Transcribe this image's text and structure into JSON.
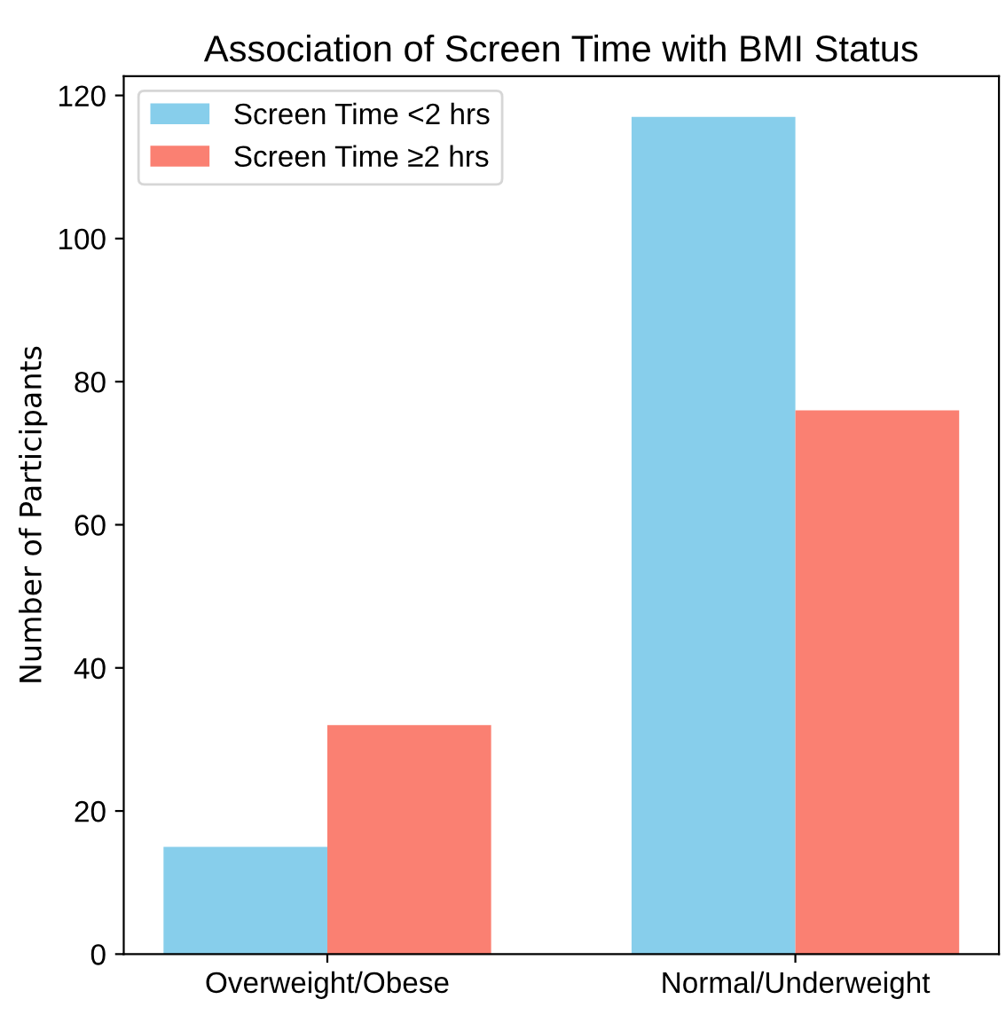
{
  "chart_data": {
    "type": "bar",
    "title": "Association of Screen Time with BMI Status",
    "ylabel": "Number of Participants",
    "categories": [
      "Overweight/Obese",
      "Normal/Underweight"
    ],
    "series": [
      {
        "name": "Screen Time <2 hrs",
        "color": "#87ceeb",
        "values": [
          15,
          117
        ]
      },
      {
        "name": "Screen Time ≥2 hrs",
        "color": "#fa8072",
        "values": [
          32,
          76
        ]
      }
    ],
    "ylim": [
      0,
      122.7
    ],
    "yticks": [
      0,
      20,
      40,
      60,
      80,
      100,
      120
    ],
    "legend": "top left",
    "grid": false
  }
}
